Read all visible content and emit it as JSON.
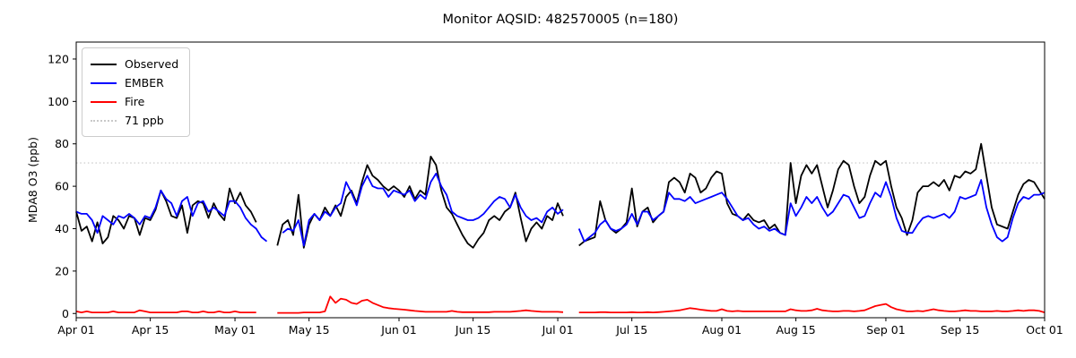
{
  "chart_data": {
    "type": "line",
    "title": "Monitor AQSID: 482570005 (n=180)",
    "ylabel": "MDA8 O3 (ppb)",
    "xlabel": "",
    "ylim": [
      -2,
      128
    ],
    "yticks": [
      0,
      20,
      40,
      60,
      80,
      100,
      120
    ],
    "xtick_labels": [
      "Apr 01",
      "Apr 15",
      "May 01",
      "May 15",
      "Jun 01",
      "Jun 15",
      "Jul 01",
      "Jul 15",
      "Aug 01",
      "Aug 15",
      "Sep 01",
      "Sep 15",
      "Oct 01"
    ],
    "xtick_day_index": [
      0,
      14,
      30,
      44,
      61,
      75,
      91,
      105,
      122,
      136,
      153,
      167,
      183
    ],
    "x_total_days": 183,
    "x_range": [
      "Apr 01",
      "Oct 01"
    ],
    "grid": false,
    "legend_position": "upper left",
    "reference_line": {
      "value": 71,
      "label": "71 ppb",
      "color": "#d0d0d0",
      "style": "dotted"
    },
    "legend": [
      {
        "label": "Observed",
        "color": "#000000",
        "style": "solid"
      },
      {
        "label": "EMBER",
        "color": "#0000ff",
        "style": "solid"
      },
      {
        "label": "Fire",
        "color": "#ff0000",
        "style": "solid"
      },
      {
        "label": "71 ppb",
        "color": "#c8c8c8",
        "style": "dotted"
      }
    ],
    "series": [
      {
        "name": "Observed",
        "color": "#000000",
        "values": [
          48,
          39,
          41,
          34,
          43,
          33,
          36,
          46,
          44,
          40,
          46,
          45,
          37,
          45,
          44,
          49,
          58,
          53,
          46,
          45,
          51,
          38,
          51,
          53,
          52,
          45,
          52,
          47,
          44,
          59,
          52,
          57,
          51,
          48,
          43,
          null,
          null,
          null,
          32,
          42,
          44,
          37,
          56,
          31,
          42,
          47,
          44,
          50,
          46,
          51,
          46,
          55,
          58,
          52,
          62,
          70,
          65,
          63,
          60,
          58,
          60,
          58,
          55,
          60,
          54,
          58,
          56,
          74,
          70,
          58,
          50,
          47,
          42,
          37,
          33,
          31,
          35,
          38,
          44,
          46,
          44,
          48,
          50,
          57,
          45,
          34,
          40,
          43,
          40,
          46,
          44,
          52,
          46,
          null,
          null,
          32,
          34,
          35,
          36,
          53,
          44,
          40,
          38,
          40,
          43,
          59,
          41,
          48,
          50,
          43,
          46,
          48,
          62,
          64,
          62,
          57,
          66,
          64,
          57,
          59,
          64,
          67,
          66,
          52,
          47,
          46,
          44,
          47,
          44,
          43,
          44,
          40,
          42,
          38,
          37,
          71,
          52,
          65,
          70,
          66,
          70,
          60,
          50,
          58,
          68,
          72,
          70,
          60,
          52,
          55,
          65,
          72,
          70,
          72,
          60,
          50,
          45,
          37,
          44,
          57,
          60,
          60,
          62,
          60,
          63,
          58,
          65,
          64,
          67,
          66,
          68,
          80,
          65,
          50,
          42,
          41,
          40,
          48,
          56,
          61,
          63,
          62,
          58,
          54
        ]
      },
      {
        "name": "EMBER",
        "color": "#0000ff",
        "values": [
          48,
          47,
          47,
          44,
          38,
          46,
          44,
          42,
          46,
          45,
          47,
          45,
          42,
          46,
          45,
          50,
          58,
          54,
          52,
          46,
          53,
          55,
          46,
          52,
          53,
          48,
          50,
          48,
          46,
          53,
          53,
          50,
          45,
          42,
          40,
          36,
          34,
          null,
          null,
          38,
          40,
          39,
          44,
          32,
          44,
          47,
          44,
          48,
          46,
          50,
          52,
          62,
          57,
          51,
          60,
          65,
          60,
          59,
          59,
          55,
          58,
          57,
          56,
          58,
          53,
          56,
          54,
          62,
          66,
          60,
          56,
          48,
          46,
          45,
          44,
          44,
          45,
          47,
          50,
          53,
          55,
          54,
          50,
          56,
          50,
          46,
          44,
          45,
          43,
          48,
          50,
          47,
          49,
          null,
          null,
          40,
          34,
          36,
          38,
          42,
          44,
          40,
          39,
          40,
          42,
          47,
          42,
          48,
          48,
          44,
          46,
          48,
          57,
          54,
          54,
          53,
          55,
          52,
          53,
          54,
          55,
          56,
          57,
          54,
          50,
          46,
          44,
          45,
          42,
          40,
          41,
          39,
          40,
          38,
          37,
          52,
          46,
          50,
          55,
          52,
          55,
          50,
          46,
          48,
          52,
          56,
          55,
          50,
          45,
          46,
          52,
          57,
          55,
          62,
          55,
          45,
          39,
          38,
          38,
          42,
          45,
          46,
          45,
          46,
          47,
          45,
          48,
          55,
          54,
          55,
          56,
          63,
          50,
          42,
          36,
          34,
          36,
          45,
          52,
          55,
          54,
          56,
          56,
          57
        ]
      },
      {
        "name": "Fire",
        "color": "#ff0000",
        "values": [
          1,
          0.5,
          1,
          0.5,
          0.5,
          0.5,
          0.5,
          1,
          0.5,
          0.5,
          0.5,
          0.5,
          1.5,
          1,
          0.5,
          0.5,
          0.5,
          0.5,
          0.5,
          0.5,
          1,
          1,
          0.5,
          0.5,
          1,
          0.5,
          0.5,
          1,
          0.5,
          0.5,
          1,
          0.5,
          0.5,
          0.5,
          0.5,
          null,
          null,
          null,
          0.3,
          0.3,
          0.3,
          0.3,
          0.3,
          0.5,
          0.5,
          0.5,
          0.5,
          1,
          8,
          5,
          7,
          6.5,
          5,
          4.5,
          6,
          6.5,
          5,
          4,
          3,
          2.5,
          2.2,
          2,
          1.8,
          1.5,
          1.2,
          1,
          0.8,
          0.8,
          0.8,
          0.8,
          0.8,
          1.2,
          0.8,
          0.6,
          0.6,
          0.6,
          0.6,
          0.6,
          0.6,
          0.8,
          0.8,
          0.8,
          0.8,
          1,
          1.2,
          1.5,
          1.2,
          1,
          0.8,
          0.8,
          0.8,
          0.8,
          0.6,
          null,
          null,
          0.5,
          0.5,
          0.5,
          0.5,
          0.6,
          0.6,
          0.5,
          0.5,
          0.5,
          0.5,
          0.6,
          0.5,
          0.5,
          0.6,
          0.5,
          0.6,
          0.8,
          1,
          1.2,
          1.5,
          2,
          2.5,
          2.2,
          1.8,
          1.5,
          1.2,
          1.2,
          2,
          1.2,
          1,
          1.2,
          1,
          1,
          1,
          1,
          1,
          1,
          1,
          1,
          1,
          2,
          1.5,
          1.2,
          1.2,
          1.5,
          2.2,
          1.5,
          1.2,
          1,
          1,
          1.2,
          1.2,
          1,
          1.2,
          1.5,
          2.5,
          3.5,
          4,
          4.5,
          3,
          2,
          1.5,
          1,
          1,
          1.2,
          1,
          1.5,
          2,
          1.5,
          1.2,
          1,
          1,
          1.2,
          1.5,
          1.2,
          1.2,
          1,
          1,
          1,
          1.2,
          1,
          1,
          1.2,
          1.5,
          1.2,
          1.5,
          1.5,
          1.2,
          0.5
        ]
      }
    ]
  }
}
